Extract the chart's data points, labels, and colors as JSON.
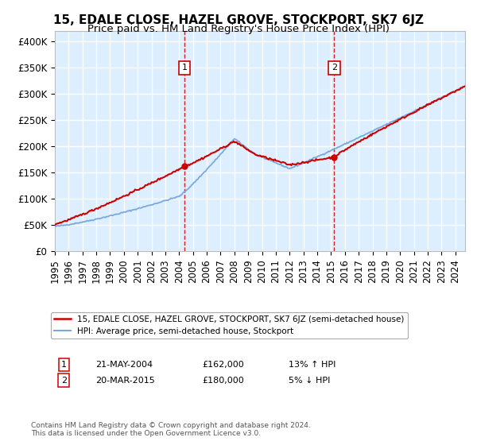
{
  "title": "15, EDALE CLOSE, HAZEL GROVE, STOCKPORT, SK7 6JZ",
  "subtitle": "Price paid vs. HM Land Registry's House Price Index (HPI)",
  "xlim_start": 1995.0,
  "xlim_end": 2024.7,
  "ylim_min": 0,
  "ylim_max": 420000,
  "yticks": [
    0,
    50000,
    100000,
    150000,
    200000,
    250000,
    300000,
    350000,
    400000
  ],
  "ytick_labels": [
    "£0",
    "£50K",
    "£100K",
    "£150K",
    "£200K",
    "£250K",
    "£300K",
    "£350K",
    "£400K"
  ],
  "sale1_x": 2004.385,
  "sale1_y": 162000,
  "sale1_label": "1",
  "sale1_date": "21-MAY-2004",
  "sale1_price": "£162,000",
  "sale1_hpi": "13% ↑ HPI",
  "sale2_x": 2015.22,
  "sale2_y": 180000,
  "sale2_label": "2",
  "sale2_date": "20-MAR-2015",
  "sale2_price": "£180,000",
  "sale2_hpi": "5% ↓ HPI",
  "legend_line1": "15, EDALE CLOSE, HAZEL GROVE, STOCKPORT, SK7 6JZ (semi-detached house)",
  "legend_line2": "HPI: Average price, semi-detached house, Stockport",
  "footer": "Contains HM Land Registry data © Crown copyright and database right 2024.\nThis data is licensed under the Open Government Licence v3.0.",
  "line_color_red": "#cc0000",
  "line_color_blue": "#7aaadd",
  "background_color": "#ddeeff",
  "grid_color": "#ffffff",
  "title_fontsize": 11,
  "subtitle_fontsize": 9.5,
  "tick_fontsize": 8.5
}
